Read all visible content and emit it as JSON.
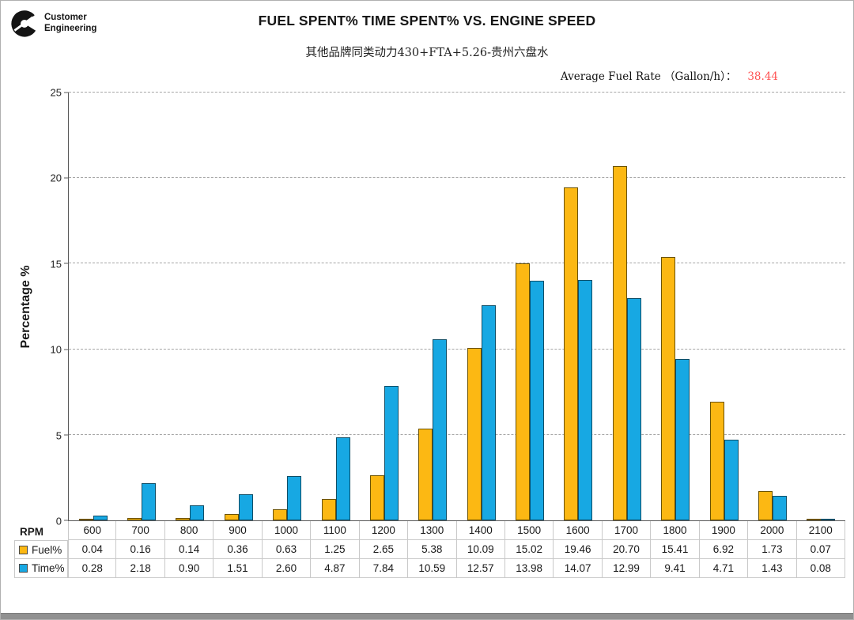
{
  "header": {
    "logo_line1": "Customer",
    "logo_line2": "Engineering",
    "title": "FUEL SPENT% TIME SPENT% VS. ENGINE SPEED",
    "subtitle": "其他品牌同类动力430+FTA+5.26-贵州六盘水",
    "avg_fuel_rate_label": "Average Fuel Rate （Gallon/h）：",
    "avg_fuel_rate_value": "38.44",
    "avg_fuel_rate_value_color": "#ff5252"
  },
  "chart_data": {
    "type": "bar",
    "title": "FUEL SPENT% TIME SPENT% VS. ENGINE SPEED",
    "xlabel": "RPM",
    "ylabel": "Percentage %",
    "ylim": [
      0,
      25
    ],
    "yticks": [
      0,
      5,
      10,
      15,
      20,
      25
    ],
    "grid": "horizontal-dashed",
    "legend_position": "data-table-left",
    "categories": [
      600,
      700,
      800,
      900,
      1000,
      1100,
      1200,
      1300,
      1400,
      1500,
      1600,
      1700,
      1800,
      1900,
      2000,
      2100
    ],
    "series": [
      {
        "name": "Fuel%",
        "color": "#fcb813",
        "values": [
          0.04,
          0.16,
          0.14,
          0.36,
          0.63,
          1.25,
          2.65,
          5.38,
          10.09,
          15.02,
          19.46,
          20.7,
          15.41,
          6.92,
          1.73,
          0.07
        ]
      },
      {
        "name": "Time%",
        "color": "#17a8e3",
        "values": [
          0.28,
          2.18,
          0.9,
          1.51,
          2.6,
          4.87,
          7.84,
          10.59,
          12.57,
          13.98,
          14.07,
          12.99,
          9.41,
          4.71,
          1.43,
          0.08
        ]
      }
    ]
  }
}
